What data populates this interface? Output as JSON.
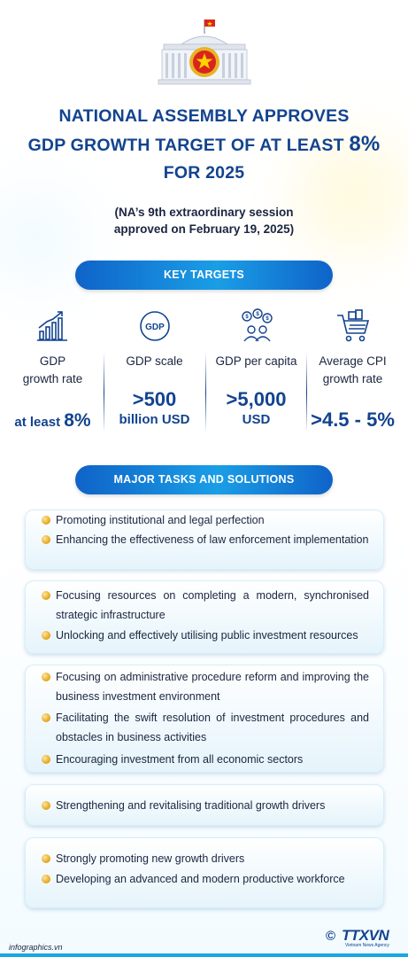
{
  "header": {
    "title_line1": "NATIONAL ASSEMBLY APPROVES",
    "title_line2_prefix": "GDP GROWTH TARGET OF AT LEAST",
    "title_line2_big": "8%",
    "title_line3": "FOR 2025",
    "subtitle_line1": "(NA’s 9th extraordinary session",
    "subtitle_line2": "approved on February 19, 2025)"
  },
  "key_targets": {
    "heading": "KEY TARGETS",
    "items": [
      {
        "icon": "growth-chart-icon",
        "label_line1": "GDP",
        "label_line2": "growth rate",
        "value_prefix": "at least",
        "value_main": "8%"
      },
      {
        "icon": "gdp-badge-icon",
        "icon_text": "GDP",
        "label_line1": "GDP scale",
        "value_main": ">500",
        "value_unit": "billion USD"
      },
      {
        "icon": "people-money-icon",
        "label_line1": "GDP per capita",
        "value_main": ">5,000",
        "value_unit": "USD"
      },
      {
        "icon": "shopping-cart-icon",
        "label_line1": "Average CPI",
        "label_line2": "growth rate",
        "value_main": ">4.5 - 5%"
      }
    ]
  },
  "tasks": {
    "heading": "MAJOR TASKS AND SOLUTIONS",
    "groups": [
      {
        "items": [
          "Promoting institutional and legal perfection",
          "Enhancing the effectiveness of law enforcement implementation"
        ]
      },
      {
        "items": [
          "Focusing resources on completing a modern, synchronised strategic infrastructure",
          "Unlocking and effectively utilising public investment resources"
        ]
      },
      {
        "items": [
          "Focusing on administrative procedure reform and improving the business investment environment",
          "Facilitating the swift resolution of investment procedures and obstacles in business activities",
          "Encouraging investment from all economic sectors"
        ]
      },
      {
        "items": [
          "Strengthening and revitalising traditional growth drivers"
        ]
      },
      {
        "items": [
          "Strongly promoting new growth drivers",
          "Developing an advanced and modern productive workforce"
        ]
      }
    ]
  },
  "footer": {
    "site": "infographics.vn",
    "copyright_symbol": "©",
    "logo_text": "TTXVN",
    "logo_sub": "Vietnam News Agency"
  },
  "colors": {
    "primary": "#12438f",
    "accent": "#1a9ee6",
    "gold": "#e2a21a",
    "flag_red": "#da251d"
  }
}
